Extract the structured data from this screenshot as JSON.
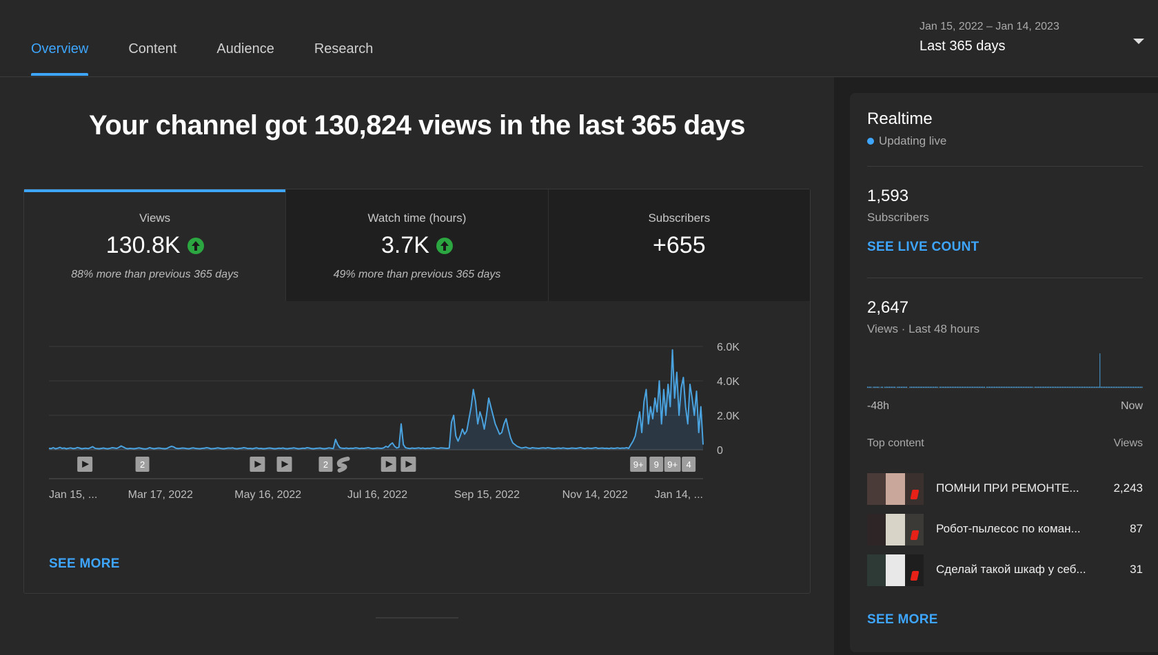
{
  "tabs": [
    "Overview",
    "Content",
    "Audience",
    "Research"
  ],
  "active_tab": 0,
  "date_picker": {
    "range": "Jan 15, 2022 – Jan 14, 2023",
    "label": "Last 365 days"
  },
  "headline": "Your channel got 130,824 views in the last 365 days",
  "metrics": [
    {
      "title": "Views",
      "value": "130.8K",
      "trend": "up",
      "note": "88% more than previous 365 days"
    },
    {
      "title": "Watch time (hours)",
      "value": "3.7K",
      "trend": "up",
      "note": "49% more than previous 365 days"
    },
    {
      "title": "Subscribers",
      "value": "+655",
      "trend": "",
      "note": ""
    }
  ],
  "see_more": "SEE MORE",
  "chart_data": {
    "type": "line",
    "series": [
      {
        "values": [
          80,
          70,
          120,
          60,
          90,
          140,
          80,
          100,
          60,
          90,
          110,
          70,
          80,
          130,
          100,
          60,
          80,
          90,
          70,
          120,
          180,
          90,
          70,
          60,
          80,
          100,
          70,
          60,
          90,
          120,
          100,
          80,
          140,
          220,
          160,
          90,
          60,
          80,
          70,
          60,
          80,
          110,
          90,
          60,
          50,
          70,
          120,
          90,
          60,
          80,
          100,
          90,
          70,
          60,
          80,
          150,
          200,
          170,
          90,
          70,
          80,
          100,
          90,
          70,
          60,
          90,
          110,
          80,
          70,
          60,
          80,
          90,
          120,
          100,
          60,
          70,
          80,
          110,
          90,
          70,
          60,
          80,
          100,
          90,
          110,
          70,
          60,
          80,
          90,
          120,
          100,
          70,
          80,
          60,
          90,
          110,
          70,
          80,
          60,
          70,
          90,
          100,
          80,
          60,
          70,
          90,
          80,
          100,
          70,
          60,
          80,
          90,
          110,
          80,
          60,
          70,
          90,
          80,
          120,
          100,
          70,
          60,
          80,
          90,
          100,
          70,
          60,
          80,
          110,
          90,
          70,
          600,
          300,
          120,
          90,
          80,
          100,
          70,
          90,
          80,
          110,
          100,
          70,
          90,
          80,
          100,
          120,
          90,
          70,
          80,
          100,
          90,
          80,
          110,
          200,
          150,
          300,
          400,
          200,
          100,
          150,
          1500,
          300,
          120,
          90,
          70,
          100,
          80,
          90,
          110,
          80,
          100,
          70,
          90,
          80,
          100,
          120,
          90,
          80,
          110,
          100,
          90,
          80,
          100,
          1600,
          2000,
          800,
          500,
          800,
          1200,
          900,
          1100,
          1800,
          2500,
          3500,
          2800,
          1500,
          2200,
          1800,
          1200,
          2000,
          3000,
          2500,
          2000,
          1500,
          1200,
          900,
          1000,
          1500,
          1800,
          1200,
          700,
          400,
          300,
          200,
          150,
          100,
          120,
          150,
          100,
          80,
          120,
          100,
          90,
          80,
          100,
          110,
          90,
          120,
          100,
          80,
          70,
          90,
          100,
          80,
          110,
          90,
          70,
          80,
          100,
          90,
          80,
          100,
          120,
          90,
          70,
          100,
          90,
          80,
          100,
          120,
          80,
          90,
          100,
          80,
          90,
          70,
          100,
          80,
          90,
          110,
          80,
          100,
          90,
          120,
          80,
          300,
          500,
          800,
          1500,
          2200,
          1000,
          2800,
          3500,
          1500,
          2500,
          1800,
          3000,
          2200,
          4000,
          1500,
          3500,
          2000,
          3800,
          2500,
          5800,
          3000,
          4500,
          2000,
          3600,
          4200,
          2500,
          1500,
          3800,
          3000,
          2000,
          3400,
          1000,
          2500,
          300
        ]
      }
    ],
    "x_tick_labels": [
      "Jan 15, ...",
      "Mar 17, 2022",
      "May 16, 2022",
      "Jul 16, 2022",
      "Sep 15, 2022",
      "Nov 14, 2022",
      "Jan 14, ..."
    ],
    "y_tick_labels": [
      "6.0K",
      "4.0K",
      "2.0K",
      "0"
    ],
    "ylim": [
      0,
      6000
    ],
    "grid": true,
    "markers": [
      {
        "kind": "video",
        "day": 20
      },
      {
        "kind": "count",
        "label": "2",
        "day": 52
      },
      {
        "kind": "video",
        "day": 116
      },
      {
        "kind": "video",
        "day": 131
      },
      {
        "kind": "count",
        "label": "2",
        "day": 154
      },
      {
        "kind": "short",
        "day": 164
      },
      {
        "kind": "video",
        "day": 189
      },
      {
        "kind": "video",
        "day": 200
      },
      {
        "kind": "count",
        "label": "9+",
        "day": 328
      },
      {
        "kind": "count",
        "label": "9",
        "day": 338
      },
      {
        "kind": "count",
        "label": "9+",
        "day": 347
      },
      {
        "kind": "count",
        "label": "4",
        "day": 356
      }
    ]
  },
  "realtime": {
    "title": "Realtime",
    "live": "Updating live",
    "subs_value": "1,593",
    "subs_label": "Subscribers",
    "live_count": "SEE LIVE COUNT",
    "views_value": "2,647",
    "views_label": "Views · Last 48 hours",
    "chart_start": "-48h",
    "chart_end": "Now",
    "hourly_views": [
      2,
      2,
      2,
      2,
      2,
      0,
      2,
      2,
      2,
      2,
      2,
      2,
      2,
      0,
      2,
      2,
      2,
      0,
      2,
      2,
      2,
      2,
      2,
      2,
      2,
      2,
      2,
      2,
      2,
      2,
      0,
      2,
      2,
      2,
      2,
      2,
      2,
      2,
      2,
      2,
      2,
      2,
      0,
      0,
      2,
      2,
      2,
      2,
      2,
      2,
      2,
      2,
      2,
      2,
      2,
      2,
      2,
      2,
      2,
      2,
      2,
      2,
      2,
      2,
      2,
      2,
      2,
      2,
      2,
      2,
      2,
      2,
      2,
      2,
      0,
      2,
      2,
      2,
      2,
      2,
      2,
      2,
      2,
      2,
      2,
      2,
      2,
      2,
      2,
      2,
      2,
      2,
      2,
      2,
      2,
      2,
      2,
      2,
      2,
      2,
      2,
      2,
      2,
      2,
      2,
      2,
      2,
      2,
      2,
      2,
      2,
      2,
      2,
      2,
      2,
      2,
      2,
      2,
      2,
      2,
      2,
      2,
      2,
      0,
      2,
      2,
      2,
      2,
      2,
      2,
      2,
      2,
      2,
      2,
      2,
      2,
      2,
      2,
      2,
      2,
      2,
      2,
      2,
      2,
      2,
      2,
      2,
      2,
      2,
      2,
      2,
      2,
      2,
      2,
      2,
      2,
      2,
      2,
      2,
      2,
      2,
      2,
      2,
      2,
      2,
      2,
      2,
      2,
      2,
      2,
      2,
      2,
      2,
      0,
      2,
      2,
      2,
      2,
      2,
      2,
      2,
      2,
      2,
      2,
      2,
      2,
      2,
      2,
      2,
      2,
      2,
      2,
      2,
      2,
      2,
      2,
      2,
      2,
      2,
      2,
      2,
      2,
      2,
      2,
      2,
      2,
      2,
      2,
      2,
      2,
      2,
      2,
      2,
      2,
      2,
      2,
      2,
      2,
      2,
      2,
      2,
      2,
      2,
      2,
      2,
      2,
      2,
      2,
      2,
      2,
      2,
      2,
      2,
      2,
      2,
      2,
      2,
      2,
      2,
      2,
      2,
      2,
      100,
      2,
      2,
      2,
      2,
      2,
      2,
      2,
      2,
      2,
      2,
      2,
      2,
      2,
      2,
      2,
      2,
      2,
      2,
      2,
      2,
      2,
      2,
      2,
      2,
      2,
      2,
      2,
      2,
      2,
      2,
      2,
      2,
      2,
      2,
      2,
      2,
      2,
      2,
      2,
      2,
      2,
      2,
      2,
      2
    ],
    "top_content_label": "Top content",
    "views_col_label": "Views",
    "top_content": [
      {
        "title": "ПОМНИ ПРИ РЕМОНТЕ...",
        "views": "2,243",
        "colors": [
          "#4a3b38",
          "#c9a79b",
          "#3a302e"
        ]
      },
      {
        "title": "Робот-пылесос по коман...",
        "views": "87",
        "colors": [
          "#2e2626",
          "#d8d4c8",
          "#3b3a36"
        ]
      },
      {
        "title": "Сделай такой шкаф у себ...",
        "views": "31",
        "colors": [
          "#2d3a36",
          "#e8e8e8",
          "#1e1e1e"
        ]
      }
    ],
    "see_more": "SEE MORE"
  }
}
